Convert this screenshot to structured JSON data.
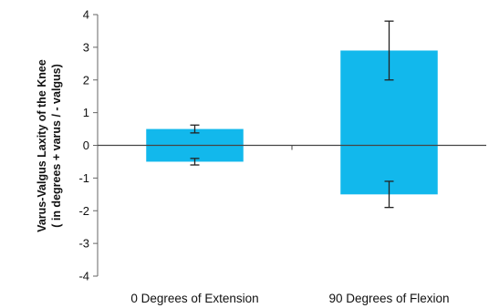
{
  "chart_data": {
    "type": "bar",
    "title": "",
    "ylabel_line1": "Varus-Valgus Laxity of the Knee",
    "ylabel_line2": "( in degrees + varus / - valgus)",
    "xlabel": "",
    "ylim": [
      -4,
      4
    ],
    "yticks": [
      "-4",
      "-3",
      "-2",
      "-1",
      "0",
      "1",
      "2",
      "3",
      "4"
    ],
    "categories": [
      "0 Degrees of Extension",
      "90 Degrees of Flexion"
    ],
    "series": [
      {
        "values": [
          0.5,
          2.9
        ],
        "error": [
          0.12,
          0.9
        ]
      },
      {
        "values": [
          -0.5,
          -1.5
        ],
        "error": [
          0.1,
          0.4
        ]
      }
    ],
    "bar_color": "#12b8ec",
    "grid": false,
    "legend": "none"
  }
}
